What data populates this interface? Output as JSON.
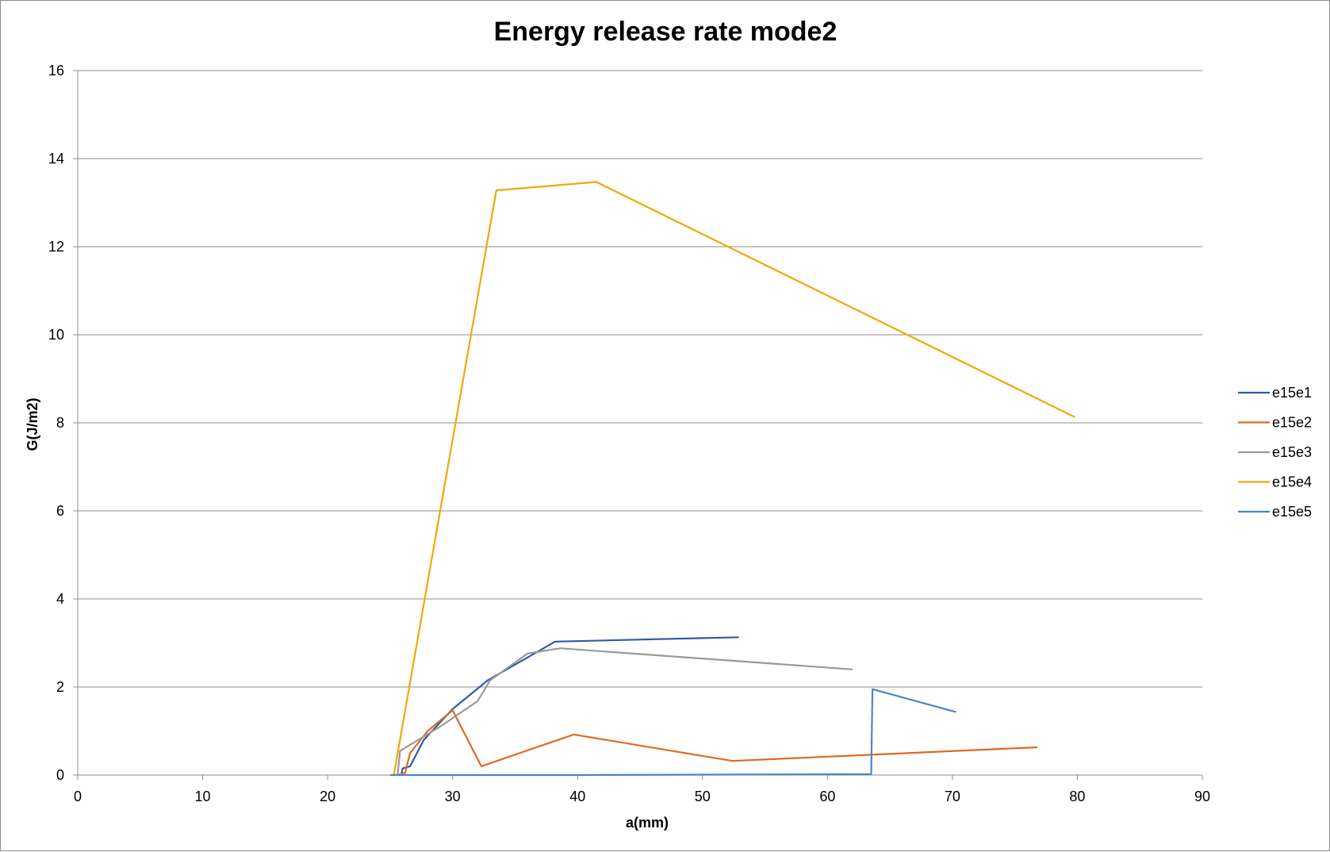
{
  "chart_data": {
    "type": "line",
    "title": "Energy release rate mode2",
    "xlabel": "a(mm)",
    "ylabel": "G(J/m2)",
    "xlim": [
      0,
      90
    ],
    "ylim": [
      0,
      16
    ],
    "xticks": [
      "0",
      "10",
      "20",
      "30",
      "40",
      "50",
      "60",
      "70",
      "80",
      "90"
    ],
    "yticks": [
      "0",
      "2",
      "4",
      "6",
      "8",
      "10",
      "12",
      "14",
      "16"
    ],
    "grid": "horizontal major gridlines",
    "legend_position": "right",
    "series": [
      {
        "name": "e15e1",
        "color": "#2e5ba8",
        "points": [
          [
            25.9,
            0.0
          ],
          [
            26.0,
            0.15
          ],
          [
            26.6,
            0.2
          ],
          [
            27.7,
            0.8
          ],
          [
            30.0,
            1.5
          ],
          [
            32.8,
            2.15
          ],
          [
            38.2,
            3.03
          ],
          [
            52.9,
            3.13
          ]
        ]
      },
      {
        "name": "e15e2",
        "color": "#e06a23",
        "points": [
          [
            25.6,
            0.0
          ],
          [
            26.2,
            0.05
          ],
          [
            26.6,
            0.5
          ],
          [
            28.0,
            1.0
          ],
          [
            30.0,
            1.47
          ],
          [
            32.3,
            0.2
          ],
          [
            39.7,
            0.92
          ],
          [
            52.4,
            0.32
          ],
          [
            76.8,
            0.63
          ]
        ]
      },
      {
        "name": "e15e3",
        "color": "#9a9a9a",
        "points": [
          [
            25.6,
            0.0
          ],
          [
            25.8,
            0.55
          ],
          [
            29.0,
            1.1
          ],
          [
            32.0,
            1.68
          ],
          [
            33.0,
            2.15
          ],
          [
            36.0,
            2.76
          ],
          [
            38.6,
            2.88
          ],
          [
            62.0,
            2.4
          ]
        ]
      },
      {
        "name": "e15e4",
        "color": "#f0a80a",
        "points": [
          [
            25.3,
            0.0
          ],
          [
            33.5,
            13.28
          ],
          [
            41.5,
            13.47
          ],
          [
            79.8,
            8.13
          ]
        ]
      },
      {
        "name": "e15e5",
        "color": "#4a86c8",
        "points": [
          [
            25.0,
            0.0
          ],
          [
            40.0,
            0.0
          ],
          [
            63.5,
            0.02
          ],
          [
            63.6,
            1.95
          ],
          [
            70.3,
            1.43
          ]
        ]
      }
    ]
  }
}
